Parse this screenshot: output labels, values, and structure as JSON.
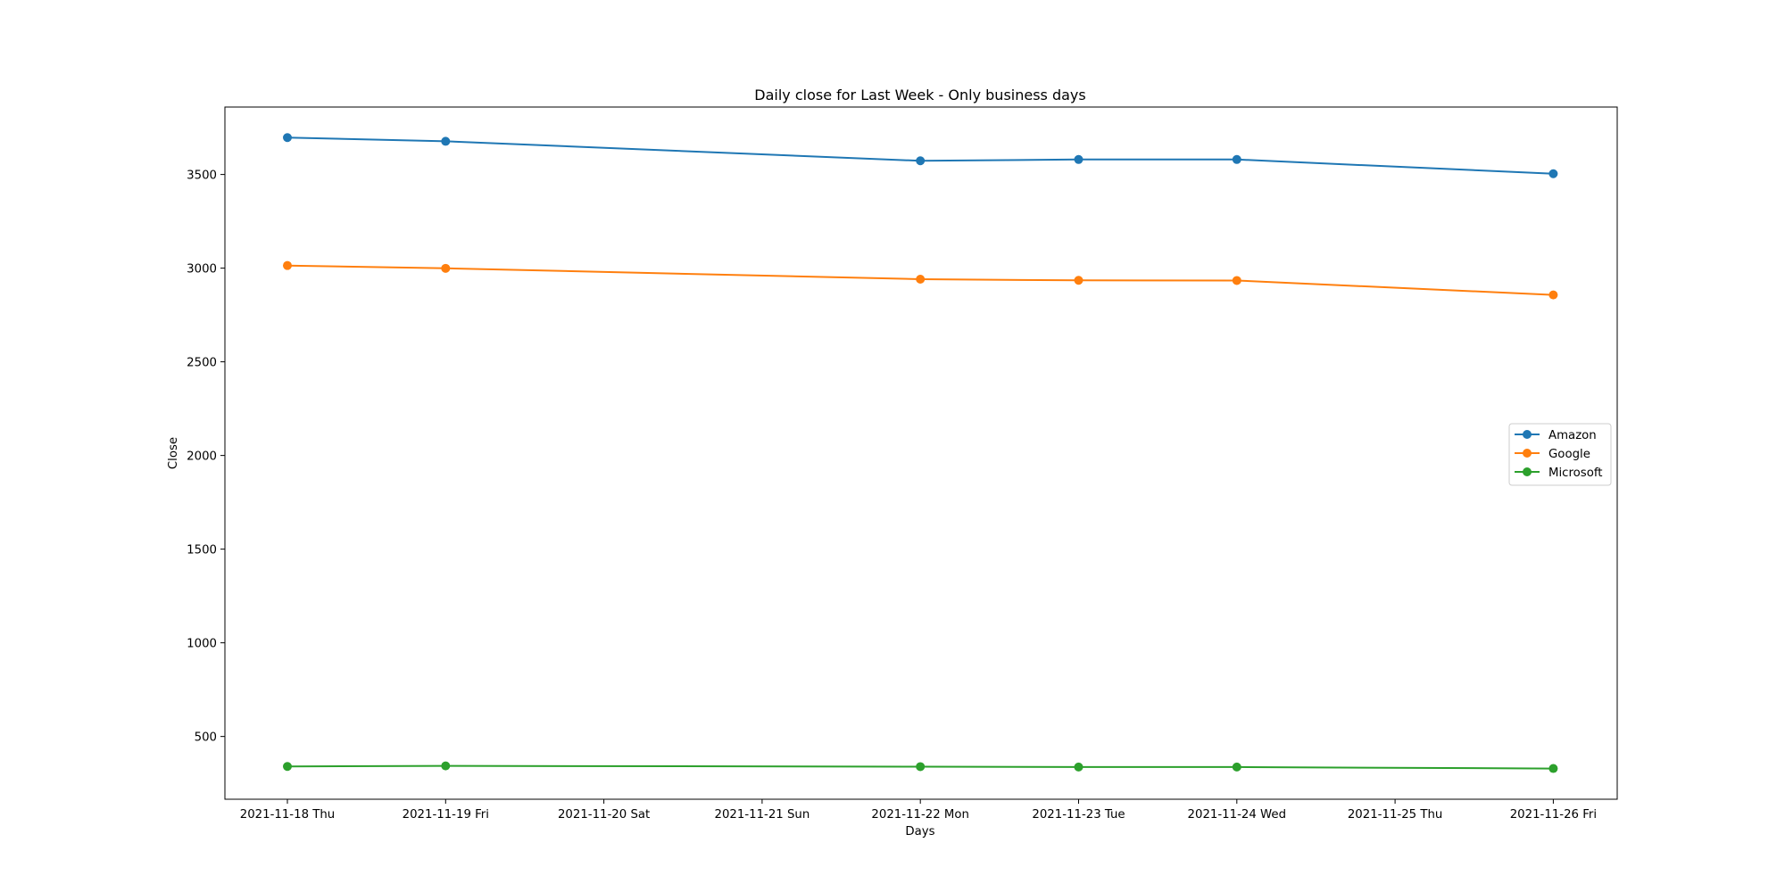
{
  "chart_data": {
    "type": "line",
    "title": "Daily close for Last Week - Only business days",
    "xlabel": "Days",
    "ylabel": "Close",
    "x_ticks": [
      "2021-11-18 Thu",
      "2021-11-19 Fri",
      "2021-11-20 Sat",
      "2021-11-21 Sun",
      "2021-11-22 Mon",
      "2021-11-23 Tue",
      "2021-11-24 Wed",
      "2021-11-25 Thu",
      "2021-11-26 Fri"
    ],
    "y_ticks": [
      500,
      1000,
      1500,
      2000,
      2500,
      3000,
      3500
    ],
    "ylim": [
      165,
      3860
    ],
    "grid": false,
    "legend_position": "right",
    "series": [
      {
        "name": "Amazon",
        "color": "#1f77b4",
        "points": [
          {
            "x": "2021-11-18 Thu",
            "y": 3697
          },
          {
            "x": "2021-11-19 Fri",
            "y": 3677
          },
          {
            "x": "2021-11-22 Mon",
            "y": 3573
          },
          {
            "x": "2021-11-23 Tue",
            "y": 3580
          },
          {
            "x": "2021-11-24 Wed",
            "y": 3580
          },
          {
            "x": "2021-11-26 Fri",
            "y": 3504
          }
        ]
      },
      {
        "name": "Google",
        "color": "#ff7f0e",
        "points": [
          {
            "x": "2021-11-18 Thu",
            "y": 3014
          },
          {
            "x": "2021-11-19 Fri",
            "y": 2999
          },
          {
            "x": "2021-11-22 Mon",
            "y": 2941
          },
          {
            "x": "2021-11-23 Tue",
            "y": 2935
          },
          {
            "x": "2021-11-24 Wed",
            "y": 2934
          },
          {
            "x": "2021-11-26 Fri",
            "y": 2857
          }
        ]
      },
      {
        "name": "Microsoft",
        "color": "#2ca02c",
        "points": [
          {
            "x": "2021-11-18 Thu",
            "y": 340
          },
          {
            "x": "2021-11-19 Fri",
            "y": 343
          },
          {
            "x": "2021-11-22 Mon",
            "y": 339
          },
          {
            "x": "2021-11-23 Tue",
            "y": 337
          },
          {
            "x": "2021-11-24 Wed",
            "y": 337
          },
          {
            "x": "2021-11-26 Fri",
            "y": 329
          }
        ]
      }
    ]
  }
}
